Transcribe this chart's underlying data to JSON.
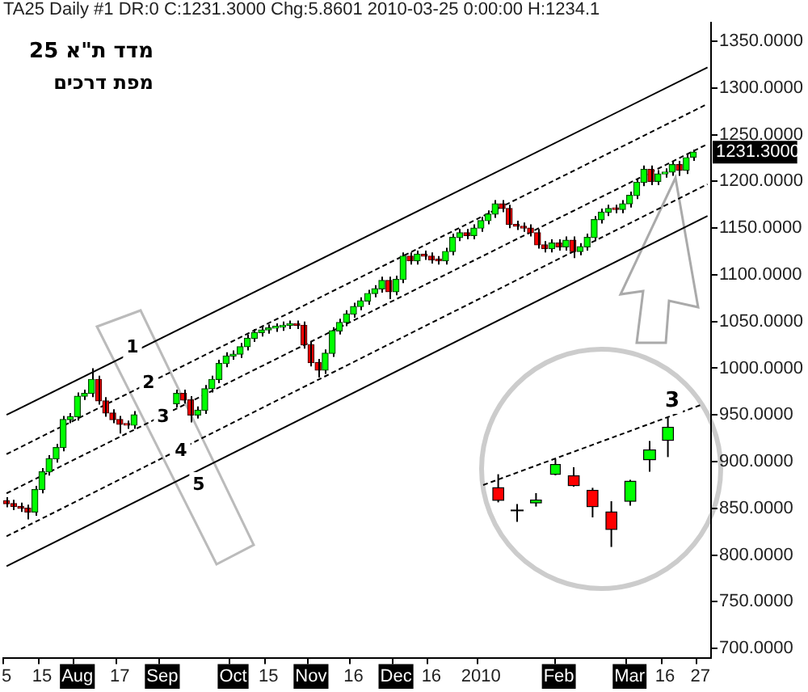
{
  "chart_data": {
    "type": "candlestick",
    "title": "TA25 Daily #1 DR:0 C:1231.3000 Chg:5.8601 2010-03-25 0:00:00 H:1234.1",
    "categories": [
      "5",
      null,
      null,
      null,
      null,
      "15",
      null,
      null,
      null,
      null,
      "Aug",
      null,
      null,
      null,
      null,
      null,
      "17",
      null,
      null,
      null,
      null,
      null,
      "Sep",
      null,
      null,
      null,
      null,
      null,
      null,
      null,
      null,
      null,
      "Oct",
      null,
      null,
      null,
      null,
      "15",
      null,
      null,
      null,
      null,
      null,
      "Nov",
      null,
      null,
      null,
      null,
      null,
      "16",
      null,
      null,
      null,
      null,
      null,
      "Dec",
      null,
      null,
      null,
      null,
      "16",
      null,
      null,
      null,
      null,
      null,
      null,
      "2010",
      null,
      null,
      null,
      null,
      null,
      null,
      null,
      null,
      null,
      null,
      "Feb",
      null,
      null,
      null,
      null,
      null,
      null,
      null,
      null,
      null,
      "Mar",
      null,
      null,
      null,
      null,
      "16",
      null,
      null,
      null,
      null,
      "27",
      null
    ],
    "ohlc": [
      [
        858,
        862,
        851,
        855
      ],
      [
        855,
        859,
        848,
        852
      ],
      [
        852,
        856,
        846,
        850
      ],
      [
        850,
        854,
        838,
        846
      ],
      [
        846,
        874,
        842,
        870
      ],
      [
        870,
        893,
        866,
        889
      ],
      [
        889,
        907,
        885,
        903
      ],
      [
        903,
        919,
        899,
        915
      ],
      [
        915,
        949,
        911,
        945
      ],
      [
        945,
        952,
        941,
        948
      ],
      [
        948,
        974,
        944,
        970
      ],
      [
        970,
        977,
        966,
        973
      ],
      [
        973,
        1000,
        969,
        988
      ],
      [
        988,
        992,
        961,
        965
      ],
      [
        965,
        969,
        948,
        952
      ],
      [
        952,
        956,
        941,
        945
      ],
      [
        945,
        949,
        930,
        940
      ],
      [
        940,
        944,
        935,
        939
      ],
      [
        939,
        954,
        935,
        950
      ],
      null,
      null,
      null,
      null,
      null,
      [
        962,
        977,
        958,
        973
      ],
      [
        973,
        977,
        962,
        966
      ],
      [
        966,
        970,
        942,
        950
      ],
      [
        950,
        959,
        946,
        955
      ],
      [
        955,
        982,
        951,
        978
      ],
      [
        978,
        992,
        974,
        988
      ],
      [
        988,
        1009,
        984,
        1005
      ],
      [
        1005,
        1017,
        1001,
        1013
      ],
      [
        1013,
        1019,
        1009,
        1015
      ],
      [
        1015,
        1027,
        1011,
        1023
      ],
      [
        1023,
        1036,
        1019,
        1032
      ],
      [
        1032,
        1042,
        1028,
        1038
      ],
      [
        1038,
        1045,
        1034,
        1041
      ],
      [
        1041,
        1047,
        1037,
        1043
      ],
      [
        1043,
        1048,
        1039,
        1044
      ],
      [
        1044,
        1050,
        1040,
        1046
      ],
      [
        1046,
        1051,
        1042,
        1047
      ],
      [
        1047,
        1051,
        1042,
        1046
      ],
      [
        1046,
        1050,
        1021,
        1025
      ],
      [
        1025,
        1029,
        1002,
        1006
      ],
      [
        1006,
        1010,
        990,
        998
      ],
      [
        998,
        1020,
        994,
        1016
      ],
      [
        1016,
        1044,
        1012,
        1040
      ],
      [
        1040,
        1053,
        1036,
        1049
      ],
      [
        1049,
        1062,
        1045,
        1058
      ],
      [
        1058,
        1070,
        1054,
        1066
      ],
      [
        1066,
        1076,
        1062,
        1072
      ],
      [
        1072,
        1084,
        1068,
        1080
      ],
      [
        1080,
        1089,
        1076,
        1085
      ],
      [
        1085,
        1098,
        1081,
        1094
      ],
      [
        1094,
        1098,
        1074,
        1082
      ],
      [
        1082,
        1099,
        1078,
        1095
      ],
      [
        1095,
        1124,
        1091,
        1120
      ],
      [
        1120,
        1124,
        1111,
        1115
      ],
      [
        1115,
        1126,
        1111,
        1122
      ],
      [
        1122,
        1126,
        1116,
        1120
      ],
      [
        1120,
        1124,
        1112,
        1116
      ],
      [
        1116,
        1120,
        1111,
        1115
      ],
      [
        1115,
        1129,
        1111,
        1125
      ],
      [
        1125,
        1144,
        1121,
        1140
      ],
      [
        1140,
        1149,
        1136,
        1145
      ],
      [
        1145,
        1149,
        1138,
        1142
      ],
      [
        1142,
        1154,
        1138,
        1150
      ],
      [
        1150,
        1162,
        1146,
        1158
      ],
      [
        1158,
        1169,
        1154,
        1165
      ],
      [
        1165,
        1180,
        1161,
        1176
      ],
      [
        1176,
        1180,
        1167,
        1171
      ],
      [
        1171,
        1175,
        1150,
        1154
      ],
      [
        1154,
        1158,
        1148,
        1152
      ],
      [
        1152,
        1156,
        1146,
        1150
      ],
      [
        1150,
        1154,
        1141,
        1145
      ],
      [
        1145,
        1149,
        1128,
        1132
      ],
      [
        1132,
        1136,
        1124,
        1128
      ],
      [
        1128,
        1138,
        1124,
        1134
      ],
      [
        1134,
        1138,
        1126,
        1130
      ],
      [
        1130,
        1141,
        1126,
        1137
      ],
      [
        1137,
        1141,
        1118,
        1125
      ],
      [
        1125,
        1134,
        1121,
        1130
      ],
      [
        1130,
        1144,
        1126,
        1140
      ],
      [
        1140,
        1163,
        1136,
        1159
      ],
      [
        1159,
        1171,
        1155,
        1167
      ],
      [
        1167,
        1175,
        1163,
        1171
      ],
      [
        1171,
        1175,
        1166,
        1170
      ],
      [
        1170,
        1180,
        1166,
        1176
      ],
      [
        1176,
        1189,
        1172,
        1185
      ],
      [
        1185,
        1203,
        1181,
        1199
      ],
      [
        1199,
        1217,
        1195,
        1213
      ],
      [
        1213,
        1217,
        1196,
        1200
      ],
      [
        1200,
        1212,
        1196,
        1208
      ],
      [
        1208,
        1214,
        1204,
        1210
      ],
      [
        1210,
        1222,
        1206,
        1218
      ],
      [
        1218,
        1222,
        1206,
        1212
      ],
      [
        1212,
        1229,
        1208,
        1225.4
      ],
      [
        1226,
        1234.1,
        1222,
        1231.3
      ],
      null,
      null
    ],
    "series": [
      {
        "type": "line",
        "color": "#000000",
        "line_style": "solid",
        "values": [
          950,
          null,
          null,
          null,
          null,
          null,
          null,
          null,
          null,
          null,
          null,
          null,
          null,
          null,
          null,
          null,
          null,
          null,
          null,
          null,
          null,
          null,
          null,
          null,
          null,
          null,
          null,
          null,
          null,
          null,
          null,
          null,
          null,
          null,
          null,
          null,
          null,
          null,
          null,
          null,
          null,
          null,
          null,
          null,
          null,
          null,
          null,
          null,
          null,
          null,
          null,
          null,
          null,
          null,
          null,
          null,
          null,
          null,
          null,
          null,
          null,
          null,
          null,
          null,
          null,
          null,
          null,
          null,
          null,
          null,
          null,
          null,
          null,
          null,
          null,
          null,
          null,
          null,
          null,
          null,
          null,
          null,
          null,
          null,
          null,
          null,
          null,
          null,
          null,
          null,
          null,
          null,
          null,
          null,
          null,
          null,
          null,
          null,
          null,
          1322
        ]
      },
      {
        "type": "line",
        "color": "#000000",
        "line_style": "dashed",
        "values": [
          908,
          null,
          null,
          null,
          null,
          null,
          null,
          null,
          null,
          null,
          null,
          null,
          null,
          null,
          null,
          null,
          null,
          null,
          null,
          null,
          null,
          null,
          null,
          null,
          null,
          null,
          null,
          null,
          null,
          null,
          null,
          null,
          null,
          null,
          null,
          null,
          null,
          null,
          null,
          null,
          null,
          null,
          null,
          null,
          null,
          null,
          null,
          null,
          null,
          null,
          null,
          null,
          null,
          null,
          null,
          null,
          null,
          null,
          null,
          null,
          null,
          null,
          null,
          null,
          null,
          null,
          null,
          null,
          null,
          null,
          null,
          null,
          null,
          null,
          null,
          null,
          null,
          null,
          null,
          null,
          null,
          null,
          null,
          null,
          null,
          null,
          null,
          null,
          null,
          null,
          null,
          null,
          null,
          null,
          null,
          null,
          null,
          null,
          null,
          1283
        ]
      },
      {
        "type": "line",
        "color": "#000000",
        "line_style": "dashed",
        "values": [
          866,
          null,
          null,
          null,
          null,
          null,
          null,
          null,
          null,
          null,
          null,
          null,
          null,
          null,
          null,
          null,
          null,
          null,
          null,
          null,
          null,
          null,
          null,
          null,
          null,
          null,
          null,
          null,
          null,
          null,
          null,
          null,
          null,
          null,
          null,
          null,
          null,
          null,
          null,
          null,
          null,
          null,
          null,
          null,
          null,
          null,
          null,
          null,
          null,
          null,
          null,
          null,
          null,
          null,
          null,
          null,
          null,
          null,
          null,
          null,
          null,
          null,
          null,
          null,
          null,
          null,
          null,
          null,
          null,
          null,
          null,
          null,
          null,
          null,
          null,
          null,
          null,
          null,
          null,
          null,
          null,
          null,
          null,
          null,
          null,
          null,
          null,
          null,
          null,
          null,
          null,
          null,
          null,
          null,
          null,
          null,
          null,
          null,
          null,
          1240
        ]
      },
      {
        "type": "line",
        "color": "#000000",
        "line_style": "dashed",
        "values": [
          820,
          null,
          null,
          null,
          null,
          null,
          null,
          null,
          null,
          null,
          null,
          null,
          null,
          null,
          null,
          null,
          null,
          null,
          null,
          null,
          null,
          null,
          null,
          null,
          null,
          null,
          null,
          null,
          null,
          null,
          null,
          null,
          null,
          null,
          null,
          null,
          null,
          null,
          null,
          null,
          null,
          null,
          null,
          null,
          null,
          null,
          null,
          null,
          null,
          null,
          null,
          null,
          null,
          null,
          null,
          null,
          null,
          null,
          null,
          null,
          null,
          null,
          null,
          null,
          null,
          null,
          null,
          null,
          null,
          null,
          null,
          null,
          null,
          null,
          null,
          null,
          null,
          null,
          null,
          null,
          null,
          null,
          null,
          null,
          null,
          null,
          null,
          null,
          null,
          null,
          null,
          null,
          null,
          null,
          null,
          null,
          null,
          null,
          null,
          1197
        ]
      },
      {
        "type": "line",
        "color": "#000000",
        "line_style": "solid",
        "values": [
          788,
          null,
          null,
          null,
          null,
          null,
          null,
          null,
          null,
          null,
          null,
          null,
          null,
          null,
          null,
          null,
          null,
          null,
          null,
          null,
          null,
          null,
          null,
          null,
          null,
          null,
          null,
          null,
          null,
          null,
          null,
          null,
          null,
          null,
          null,
          null,
          null,
          null,
          null,
          null,
          null,
          null,
          null,
          null,
          null,
          null,
          null,
          null,
          null,
          null,
          null,
          null,
          null,
          null,
          null,
          null,
          null,
          null,
          null,
          null,
          null,
          null,
          null,
          null,
          null,
          null,
          null,
          null,
          null,
          null,
          null,
          null,
          null,
          null,
          null,
          null,
          null,
          null,
          null,
          null,
          null,
          null,
          null,
          null,
          null,
          null,
          null,
          null,
          null,
          null,
          null,
          null,
          null,
          null,
          null,
          null,
          null,
          null,
          null,
          1163
        ]
      }
    ],
    "ylim": [
      690,
      1370
    ],
    "yticks": [
      {
        "value": 700,
        "label": "700.0000"
      },
      {
        "value": 750,
        "label": "750.0000"
      },
      {
        "value": 800,
        "label": "800.0000"
      },
      {
        "value": 850,
        "label": "850.0000"
      },
      {
        "value": 900,
        "label": "900.0000"
      },
      {
        "value": 950,
        "label": "950.0000"
      },
      {
        "value": 1000,
        "label": "1000.0000"
      },
      {
        "value": 1050,
        "label": "1050.0000"
      },
      {
        "value": 1100,
        "label": "1100.0000"
      },
      {
        "value": 1150,
        "label": "1150.0000"
      },
      {
        "value": 1200,
        "label": "1200.0000"
      },
      {
        "value": 1250,
        "label": "1250.0000"
      },
      {
        "value": 1300,
        "label": "1300.0000"
      },
      {
        "value": 1350,
        "label": "1350.0000"
      }
    ],
    "annotations": [
      "מדד ת\"א 25",
      "מפת דרכים",
      "1",
      "2",
      "3",
      "4",
      "5",
      "3",
      "1231.3000"
    ]
  }
}
